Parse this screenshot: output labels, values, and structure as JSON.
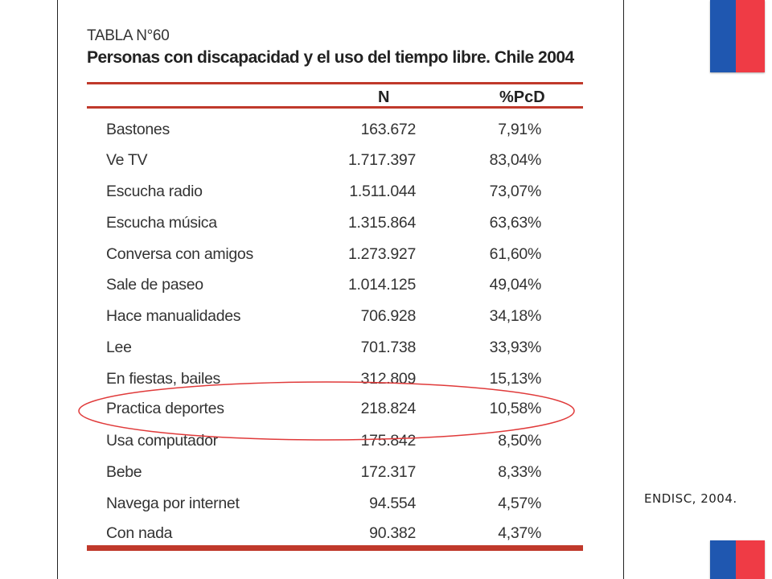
{
  "slide": {
    "table_title": "TABLA N°60",
    "table_subtitle": "Personas con discapacidad y el uso del tiempo libre. Chile 2004",
    "columns": [
      "N",
      "%PcD"
    ],
    "rows": [
      {
        "label": "Bastones",
        "n": "163.672",
        "pct": "7,91%"
      },
      {
        "label": "Ve TV",
        "n": "1.717.397",
        "pct": "83,04%"
      },
      {
        "label": "Escucha radio",
        "n": "1.511.044",
        "pct": "73,07%"
      },
      {
        "label": "Escucha música",
        "n": "1.315.864",
        "pct": "63,63%"
      },
      {
        "label": "Conversa con amigos",
        "n": "1.273.927",
        "pct": "61,60%"
      },
      {
        "label": "Sale de paseo",
        "n": "1.014.125",
        "pct": "49,04%"
      },
      {
        "label": "Hace manualidades",
        "n": "706.928",
        "pct": "34,18%"
      },
      {
        "label": "Lee",
        "n": "701.738",
        "pct": "33,93%"
      },
      {
        "label": "En fiestas, bailes",
        "n": "312.809",
        "pct": "15,13%"
      },
      {
        "label": "Practica deportes",
        "n": "218.824",
        "pct": "10,58%"
      },
      {
        "label": "Usa computador",
        "n": "175.842",
        "pct": "8,50%"
      },
      {
        "label": "Bebe",
        "n": "172.317",
        "pct": "8,33%"
      },
      {
        "label": "Navega por internet",
        "n": "94.554",
        "pct": "4,57%"
      },
      {
        "label": "Con nada",
        "n": "90.382",
        "pct": "4,37%"
      }
    ],
    "highlighted_row": "Practica deportes",
    "source": "ENDISC, 2004."
  },
  "colors": {
    "rule": "#c0392b",
    "highlight": "#e03a3a",
    "flag_blue": "#1f57b0",
    "flag_red": "#ef3b45"
  }
}
